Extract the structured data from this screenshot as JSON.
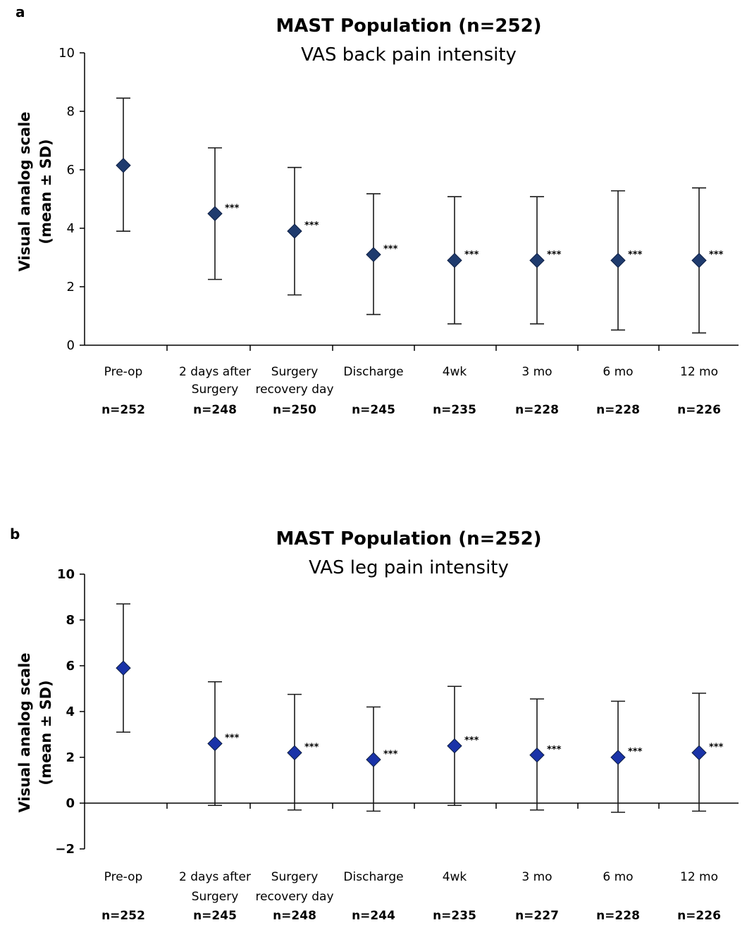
{
  "chart_data": [
    {
      "type": "scatter",
      "panel_letter": "a",
      "title": "MAST Population (n=252)",
      "subtitle": "VAS back pain intensity",
      "ylabel_line1": "Visual analog scale",
      "ylabel_line2": "(mean ± SD)",
      "ylim": [
        0,
        10
      ],
      "yticks": [
        0,
        2,
        4,
        6,
        8,
        10
      ],
      "categories": [
        [
          "Pre-op"
        ],
        [
          "2 days after",
          "Surgery"
        ],
        [
          "Surgery",
          "recovery day"
        ],
        [
          "Discharge"
        ],
        [
          "4wk"
        ],
        [
          "3 mo"
        ],
        [
          "6 mo"
        ],
        [
          "12 mo"
        ]
      ],
      "n_labels": [
        "n=252",
        "n=248",
        "n=250",
        "n=245",
        "n=235",
        "n=228",
        "n=228",
        "n=226"
      ],
      "series": [
        {
          "values": [
            6.15,
            4.5,
            3.9,
            3.1,
            2.9,
            2.9,
            2.9,
            2.9
          ],
          "error_low": [
            3.9,
            2.25,
            1.72,
            1.05,
            0.73,
            0.73,
            0.52,
            0.42
          ],
          "error_high": [
            8.45,
            6.75,
            6.08,
            5.18,
            5.08,
            5.08,
            5.28,
            5.38
          ],
          "significance": [
            "",
            "***",
            "***",
            "***",
            "***",
            "***",
            "***",
            "***"
          ]
        }
      ],
      "marker_color": "#1f3b6e",
      "grid": false,
      "legend": "none"
    },
    {
      "type": "scatter",
      "panel_letter": "b",
      "title": "MAST Population (n=252)",
      "subtitle": "VAS leg pain intensity",
      "ylabel_line1": "Visual analog scale",
      "ylabel_line2": "(mean ± SD)",
      "ylim": [
        -2,
        10
      ],
      "yticks": [
        -2,
        0,
        2,
        4,
        6,
        8,
        10
      ],
      "categories": [
        [
          "Pre-op"
        ],
        [
          "2 days after",
          "Surgery"
        ],
        [
          "Surgery",
          "recovery day"
        ],
        [
          "Discharge"
        ],
        [
          "4wk"
        ],
        [
          "3 mo"
        ],
        [
          "6 mo"
        ],
        [
          "12 mo"
        ]
      ],
      "n_labels": [
        "n=252",
        "n=245",
        "n=248",
        "n=244",
        "n=235",
        "n=227",
        "n=228",
        "n=226"
      ],
      "series": [
        {
          "values": [
            5.9,
            2.6,
            2.2,
            1.9,
            2.5,
            2.1,
            2.0,
            2.2
          ],
          "error_low": [
            3.1,
            -0.1,
            -0.3,
            -0.35,
            -0.1,
            -0.3,
            -0.4,
            -0.35
          ],
          "error_high": [
            8.7,
            5.3,
            4.75,
            4.2,
            5.1,
            4.55,
            4.45,
            4.8
          ],
          "significance": [
            "",
            "***",
            "***",
            "***",
            "***",
            "***",
            "***",
            "***"
          ]
        }
      ],
      "marker_color": "#1a33a8",
      "grid": false,
      "legend": "none"
    }
  ]
}
